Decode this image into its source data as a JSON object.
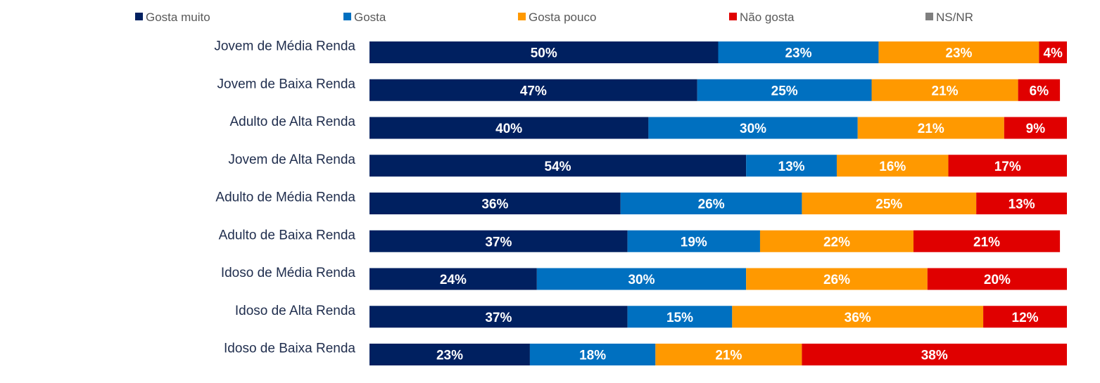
{
  "chart_data": {
    "type": "bar",
    "orientation": "horizontal",
    "stacked": true,
    "percent_stacked": true,
    "legend_position": "top",
    "grid": false,
    "title": "",
    "xlabel": "",
    "ylabel": "",
    "xlim": [
      0,
      100
    ],
    "categories": [
      "Jovem de Média Renda",
      "Jovem de Baixa Renda",
      "Adulto de Alta Renda",
      "Jovem de Alta Renda",
      "Adulto de Média Renda",
      "Adulto de Baixa Renda",
      "Idoso de Média Renda",
      "Idoso de Alta Renda",
      "Idoso de Baixa Renda"
    ],
    "series": [
      {
        "name": "Gosta muito",
        "color": "#002060",
        "values": [
          50,
          47,
          40,
          54,
          36,
          37,
          24,
          37,
          23
        ]
      },
      {
        "name": "Gosta",
        "color": "#0070C0",
        "values": [
          23,
          25,
          30,
          13,
          26,
          19,
          30,
          15,
          18
        ]
      },
      {
        "name": "Gosta pouco",
        "color": "#FF9900",
        "values": [
          23,
          21,
          21,
          16,
          25,
          22,
          26,
          36,
          21
        ]
      },
      {
        "name": "Não gosta",
        "color": "#E00000",
        "values": [
          4,
          6,
          9,
          17,
          13,
          21,
          20,
          12,
          38
        ]
      },
      {
        "name": "NS/NR",
        "color": "#7F7F7F",
        "values": [
          0,
          0,
          0,
          0,
          0,
          0,
          0,
          0,
          0
        ]
      }
    ],
    "value_suffix": "%"
  }
}
